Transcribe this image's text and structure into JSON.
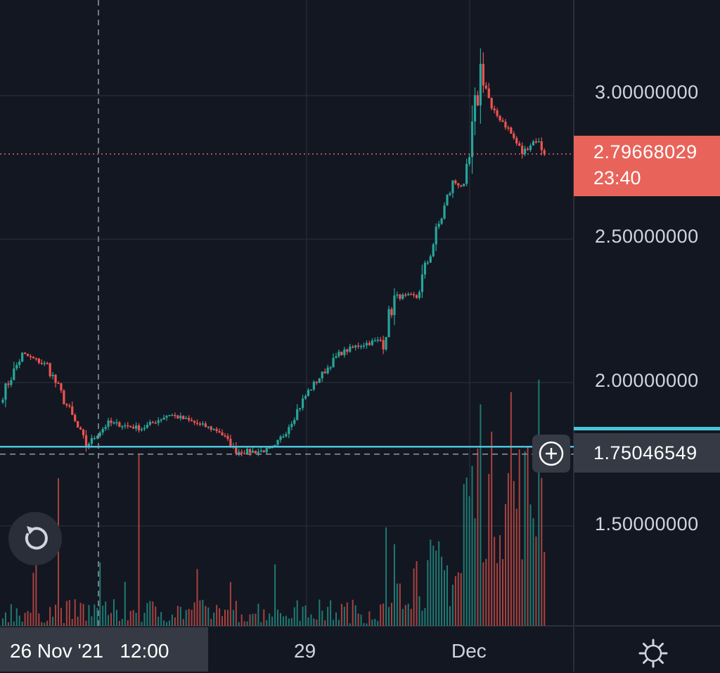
{
  "chart_data": {
    "type": "candlestick",
    "title": "",
    "price_axis": {
      "ticks": [
        {
          "value": 3.0,
          "label": "3.00000000"
        },
        {
          "value": 2.5,
          "label": "2.50000000"
        },
        {
          "value": 2.0,
          "label": "2.00000000"
        },
        {
          "value": 1.5,
          "label": "1.50000000"
        }
      ],
      "ylim": [
        1.14,
        3.28
      ]
    },
    "time_axis": {
      "ticks": [
        {
          "label": "29"
        },
        {
          "label": "Dec"
        }
      ],
      "crosshair_label": "26 Nov '21   12:00"
    },
    "last_price": {
      "value": 2.79668029,
      "label": "2.79668029",
      "countdown": "23:40"
    },
    "crosshair_price": {
      "value": 1.75046549,
      "label": "1.75046549"
    },
    "horizontal_line": {
      "value": 1.7765,
      "color": "#4cc4dc"
    },
    "colors": {
      "up": "#26a69a",
      "down": "#ef5350",
      "background": "#131722",
      "grid": "#242833"
    },
    "anchors": [
      {
        "bar": 0,
        "close": 1.96
      },
      {
        "bar": 7,
        "close": 2.1
      },
      {
        "bar": 16,
        "close": 2.06
      },
      {
        "bar": 30,
        "close": 1.78
      },
      {
        "bar": 38,
        "close": 1.86
      },
      {
        "bar": 50,
        "close": 1.84
      },
      {
        "bar": 60,
        "close": 1.89
      },
      {
        "bar": 78,
        "close": 1.83
      },
      {
        "bar": 84,
        "close": 1.76
      },
      {
        "bar": 92,
        "close": 1.76
      },
      {
        "bar": 98,
        "close": 1.77
      },
      {
        "bar": 110,
        "close": 1.97
      },
      {
        "bar": 121,
        "close": 2.1
      },
      {
        "bar": 128,
        "close": 2.13
      },
      {
        "bar": 137,
        "close": 2.15
      },
      {
        "bar": 141,
        "close": 2.3
      },
      {
        "bar": 149,
        "close": 2.3
      },
      {
        "bar": 157,
        "close": 2.55
      },
      {
        "bar": 162,
        "close": 2.7
      },
      {
        "bar": 167,
        "close": 2.68
      },
      {
        "bar": 172,
        "close": 3.1
      },
      {
        "bar": 176,
        "close": 2.95
      },
      {
        "bar": 181,
        "close": 2.9
      },
      {
        "bar": 187,
        "close": 2.8
      },
      {
        "bar": 192,
        "close": 2.85
      },
      {
        "bar": 195,
        "close": 2.8
      }
    ],
    "volume_spikes": [
      {
        "bar": 20,
        "rel": 0.6
      },
      {
        "bar": 49,
        "rel": 0.7
      },
      {
        "bar": 138,
        "rel": 0.4
      },
      {
        "bar": 172,
        "rel": 0.9
      },
      {
        "bar": 183,
        "rel": 0.95
      },
      {
        "bar": 193,
        "rel": 1.0
      }
    ]
  },
  "ui": {
    "reset_icon": "rotate-ccw-icon",
    "add_icon": "plus-circle-icon",
    "settings_icon": "gear-icon"
  }
}
